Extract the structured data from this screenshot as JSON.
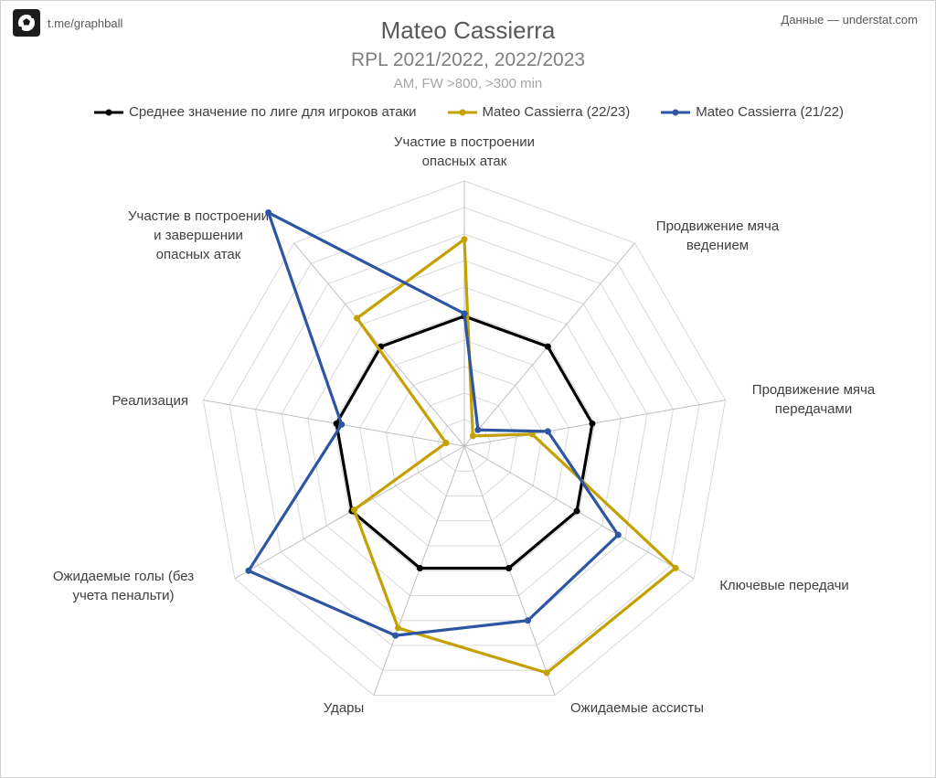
{
  "header": {
    "brand_text": "t.me/graphball",
    "source": "Данные — understat.com",
    "title": "Mateo Cassierra",
    "subtitle": "RPL 2021/2022, 2022/2023",
    "subtitle2": "AM, FW >800, >300 min"
  },
  "chart_data": {
    "type": "radar",
    "title": "Mateo Cassierra",
    "subtitle": "RPL 2021/2022, 2022/2023",
    "rmax": 10,
    "rings": 10,
    "grid": true,
    "legend_position": "top",
    "axes": [
      [
        "Участие в построении",
        "опасных атак"
      ],
      [
        "Продвижение мяча",
        "ведением"
      ],
      [
        "Продвижение мяча",
        "передачами"
      ],
      [
        "Ключевые передачи"
      ],
      [
        "Ожидаемые ассисты"
      ],
      [
        "Удары"
      ],
      [
        "Ожидаемые голы (без",
        "учета пенальти)"
      ],
      [
        "Реализация"
      ],
      [
        "Участие в построении",
        "и завершении",
        "опасных атак"
      ]
    ],
    "series": [
      {
        "name": "Среднее значение по лиге для игроков атаки",
        "color": "#000000",
        "values": [
          4.9,
          4.9,
          4.9,
          4.9,
          4.9,
          4.9,
          4.9,
          4.9,
          4.9
        ]
      },
      {
        "name": "Mateo Cassierra (22/23)",
        "color": "#c4a000",
        "values": [
          7.8,
          0.5,
          2.6,
          9.2,
          9.1,
          7.3,
          4.8,
          0.7,
          6.3
        ]
      },
      {
        "name": "Mateo Cassierra (21/22)",
        "color": "#2e55a2",
        "values": [
          5.0,
          0.8,
          3.2,
          6.7,
          7.0,
          7.6,
          9.4,
          4.7,
          11.5
        ]
      }
    ]
  }
}
